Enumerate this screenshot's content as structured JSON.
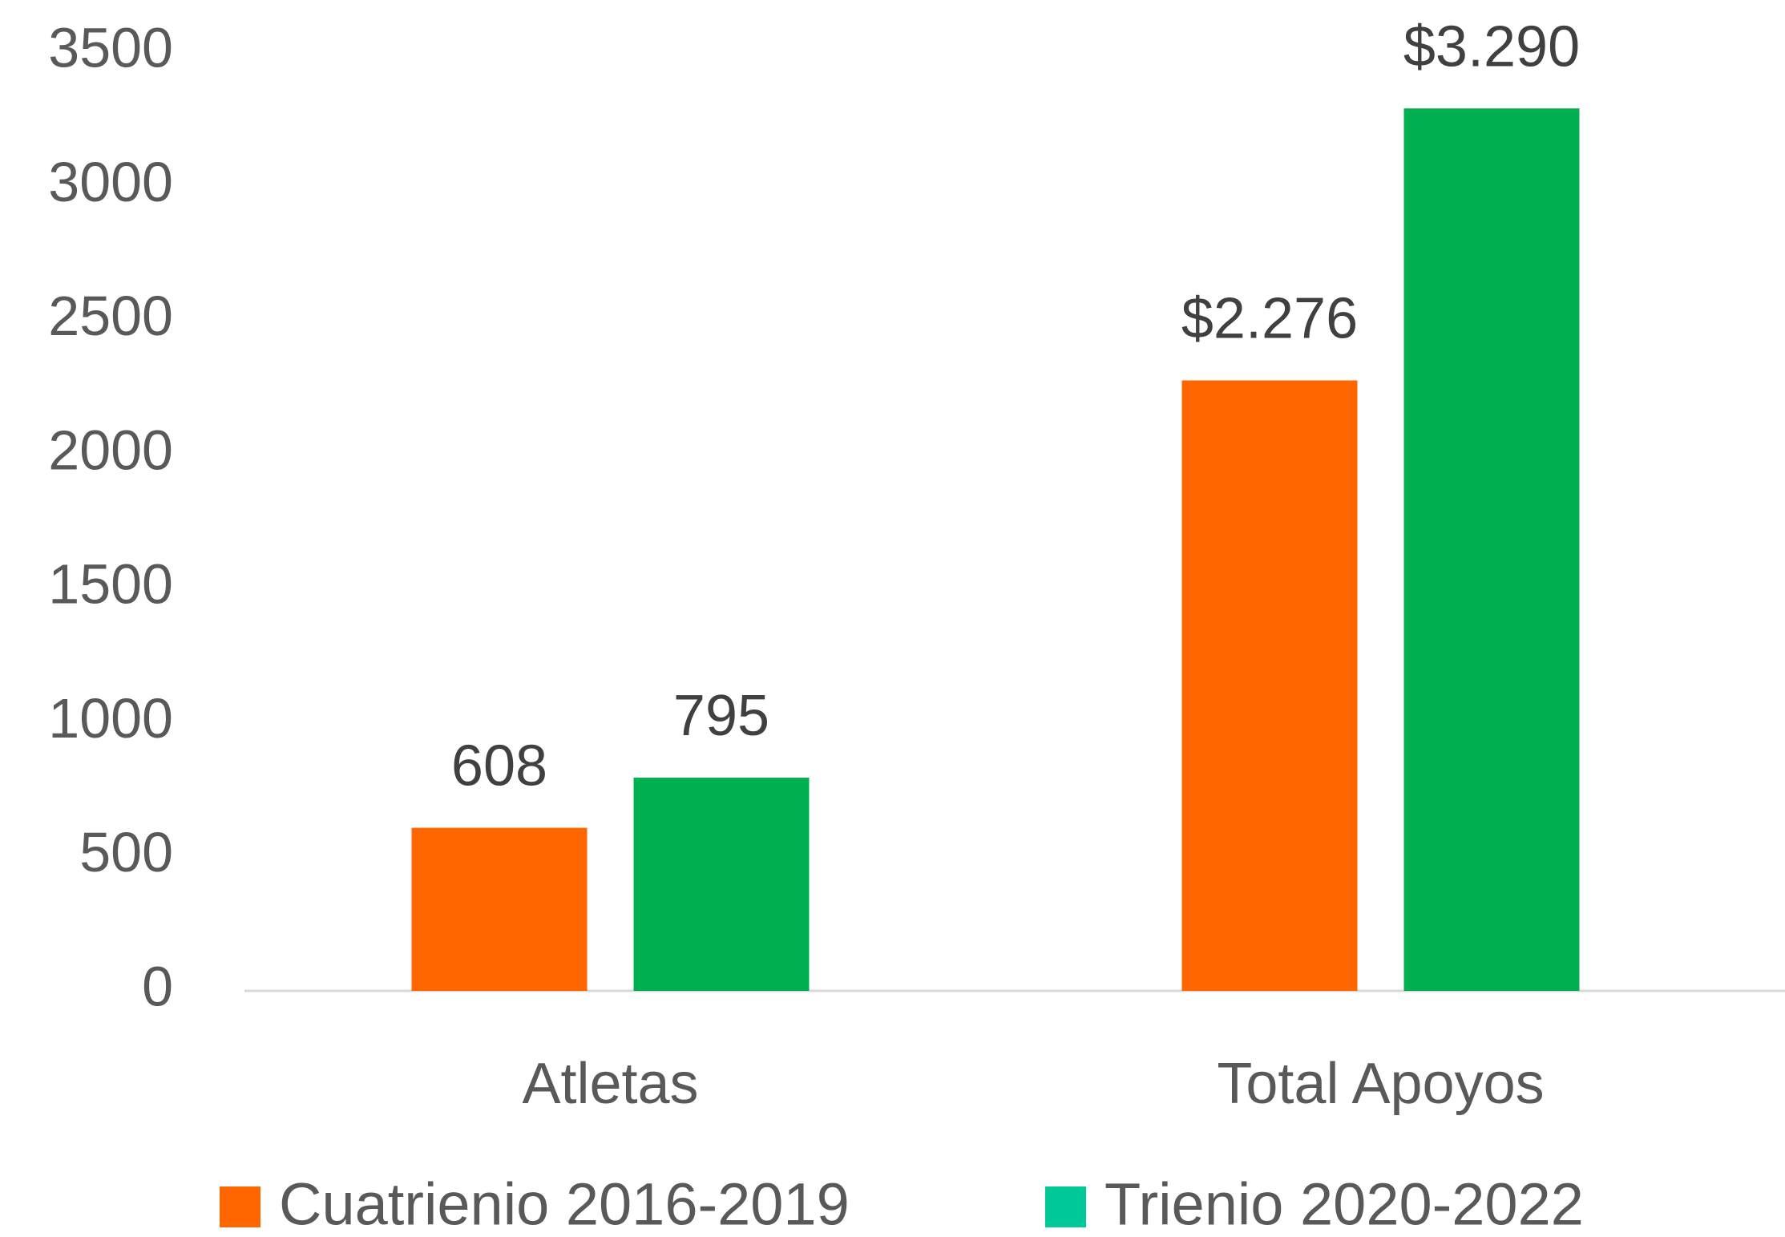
{
  "chart_data": {
    "type": "bar",
    "categories": [
      "Atletas",
      "Total Apoyos"
    ],
    "series": [
      {
        "name": "Cuatrienio 2016-2019",
        "color": "#ff6600",
        "legend_color": "#ff6600",
        "values": [
          608,
          2276
        ],
        "value_labels": [
          "608",
          "$2.276"
        ]
      },
      {
        "name": "Trienio 2020-2022",
        "color": "#00b050",
        "legend_color": "#00c896",
        "values": [
          795,
          3290
        ],
        "value_labels": [
          "795",
          "$3.290"
        ]
      }
    ],
    "ylim": [
      0,
      3500
    ],
    "yticks": [
      0,
      500,
      1000,
      1500,
      2000,
      2500,
      3000,
      3500
    ],
    "grid": false,
    "legend": "bottom"
  }
}
